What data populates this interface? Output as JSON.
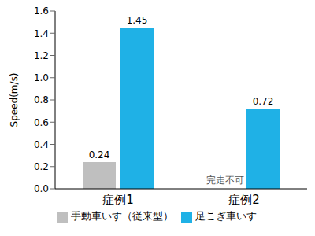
{
  "chart_data": {
    "type": "bar",
    "y_label": "Speed(m/s)",
    "categories": [
      "症例1",
      "症例2"
    ],
    "series": [
      {
        "name": "手動車いす（従来型）",
        "color": "#bfbfbf",
        "values": [
          0.24,
          null
        ]
      },
      {
        "name": "足こぎ車いす",
        "color": "#1fb1e6",
        "values": [
          1.45,
          0.72
        ]
      }
    ],
    "ylim": [
      0,
      1.6
    ],
    "yticks": [
      {
        "value": 0,
        "label": "0.0"
      },
      0.2,
      0.4,
      0.6,
      0.8,
      {
        "value": 1,
        "label": "1.0"
      },
      1.2,
      1.4,
      1.6
    ],
    "grid": false,
    "legend": "bottom",
    "data_labels": true,
    "annotations": [
      {
        "text": "完走不可",
        "category": "症例2",
        "series": "手動車いす（従来型）"
      }
    ]
  }
}
